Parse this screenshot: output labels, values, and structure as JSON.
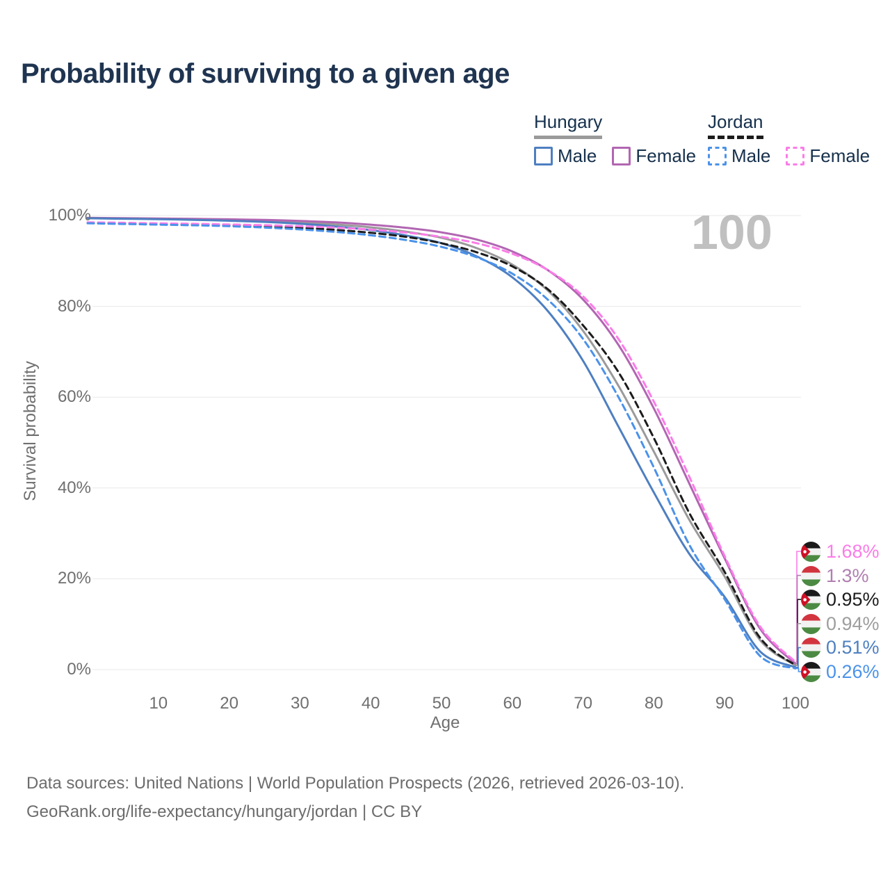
{
  "title": "Probability of surviving to a given age",
  "watermark": "100",
  "legend": {
    "groups": [
      {
        "id": "hungary",
        "label": "Hungary",
        "line_style": "solid",
        "line_color": "#9a9a9a",
        "items": [
          {
            "id": "male",
            "label": "Male",
            "color": "#4e7fc1",
            "dash": false
          },
          {
            "id": "female",
            "label": "Female",
            "color": "#b266b2",
            "dash": false
          }
        ]
      },
      {
        "id": "jordan",
        "label": "Jordan",
        "line_style": "dashed",
        "line_color": "#1c1c1c",
        "items": [
          {
            "id": "male",
            "label": "Male",
            "color": "#4b92ea",
            "dash": true
          },
          {
            "id": "female",
            "label": "Female",
            "color": "#fb7ce8",
            "dash": true
          }
        ]
      }
    ]
  },
  "chart_data": {
    "type": "line",
    "title": "Probability of surviving to a given age",
    "xlabel": "Age",
    "ylabel": "Survival probability",
    "xlim": [
      0,
      100
    ],
    "ylim": [
      0,
      100
    ],
    "grid": "horizontal",
    "legend_position": "top-right",
    "x_ticks": [
      10,
      20,
      30,
      40,
      50,
      60,
      70,
      80,
      90,
      100
    ],
    "y_ticks": [
      {
        "value": 0,
        "label": "0%"
      },
      {
        "value": 20,
        "label": "20%"
      },
      {
        "value": 40,
        "label": "40%"
      },
      {
        "value": 60,
        "label": "60%"
      },
      {
        "value": 80,
        "label": "80%"
      },
      {
        "value": 100,
        "label": "100%"
      }
    ],
    "x": [
      0,
      5,
      10,
      15,
      20,
      25,
      30,
      35,
      40,
      45,
      50,
      55,
      60,
      65,
      70,
      75,
      80,
      85,
      90,
      95,
      100
    ],
    "series": [
      {
        "name": "Hungary",
        "country": "Hungary",
        "sex": "Both",
        "color": "#9a9a9a",
        "style": "solid",
        "values": [
          99.45,
          99.36,
          99.27,
          99.15,
          99.0,
          98.8,
          98.5,
          98.05,
          97.4,
          96.45,
          95.1,
          92.8,
          89.2,
          83.5,
          74.6,
          62.5,
          48.0,
          33.0,
          20.5,
          6.5,
          0.94
        ]
      },
      {
        "name": "Hungary Female",
        "country": "Hungary",
        "sex": "Female",
        "color": "#b266b2",
        "style": "solid",
        "values": [
          99.5,
          99.42,
          99.34,
          99.26,
          99.17,
          99.03,
          98.82,
          98.5,
          98.0,
          97.3,
          96.3,
          94.7,
          92.1,
          88.0,
          81.5,
          71.5,
          57.5,
          41.0,
          24.5,
          9.0,
          1.3
        ]
      },
      {
        "name": "Hungary Male",
        "country": "Hungary",
        "sex": "Male",
        "color": "#4e7fc1",
        "style": "solid",
        "values": [
          99.4,
          99.3,
          99.2,
          99.05,
          98.85,
          98.6,
          98.2,
          97.6,
          96.8,
          95.6,
          93.9,
          91.0,
          86.4,
          79.0,
          68.0,
          53.5,
          39.0,
          25.5,
          16.0,
          4.0,
          0.51
        ]
      },
      {
        "name": "Jordan",
        "country": "Jordan",
        "sex": "Both",
        "color": "#1c1c1c",
        "style": "dashed",
        "values": [
          98.4,
          98.27,
          98.13,
          98.0,
          97.85,
          97.6,
          97.3,
          96.85,
          96.2,
          95.3,
          93.9,
          91.9,
          88.8,
          83.8,
          75.8,
          65.5,
          51.0,
          34.5,
          21.5,
          7.0,
          0.95
        ]
      },
      {
        "name": "Jordan Female",
        "country": "Jordan",
        "sex": "Female",
        "color": "#fb7ce8",
        "style": "dashed",
        "values": [
          98.5,
          98.4,
          98.28,
          98.17,
          98.03,
          97.87,
          97.65,
          97.35,
          96.9,
          96.25,
          95.3,
          93.9,
          91.6,
          88.0,
          82.2,
          72.8,
          59.0,
          42.5,
          25.0,
          9.5,
          1.68
        ]
      },
      {
        "name": "Jordan Male",
        "country": "Jordan",
        "sex": "Male",
        "color": "#4b92ea",
        "style": "dashed",
        "values": [
          98.3,
          98.15,
          98.0,
          97.85,
          97.65,
          97.35,
          96.95,
          96.4,
          95.65,
          94.6,
          93.1,
          90.8,
          87.2,
          81.5,
          72.8,
          60.0,
          44.5,
          27.5,
          15.5,
          3.0,
          0.26
        ]
      }
    ],
    "end_labels": [
      {
        "series": "Jordan Female",
        "value": "1.68%",
        "flag": "jordan",
        "color": "#fb7ce8"
      },
      {
        "series": "Hungary Female",
        "value": "1.3%",
        "flag": "hungary",
        "color": "#b07fb0"
      },
      {
        "series": "Jordan",
        "value": "0.95%",
        "flag": "jordan",
        "color": "#1c1c1c"
      },
      {
        "series": "Hungary",
        "value": "0.94%",
        "flag": "hungary",
        "color": "#9e9e9e"
      },
      {
        "series": "Hungary Male",
        "value": "0.51%",
        "flag": "hungary",
        "color": "#4e7fc1"
      },
      {
        "series": "Jordan Male",
        "value": "0.26%",
        "flag": "jordan",
        "color": "#4b92ea"
      }
    ]
  },
  "footer": {
    "line1": "Data sources: United Nations | World Population Prospects (2026, retrieved 2026-03-10).",
    "line2": "GeoRank.org/life-expectancy/hungary/jordan | CC BY"
  }
}
